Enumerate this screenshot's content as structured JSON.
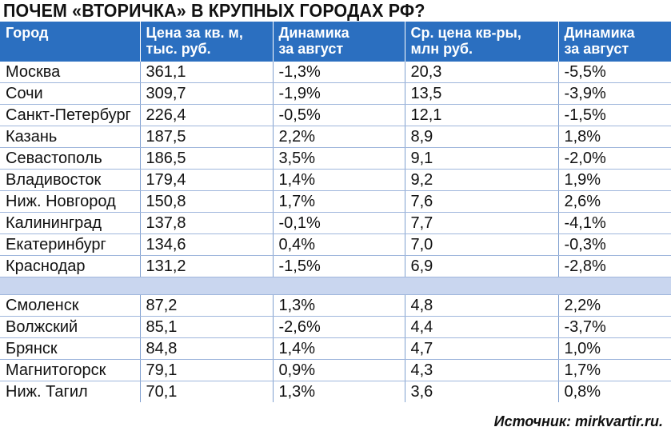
{
  "title": "ПОЧЕМ «ВТОРИЧКА» В КРУПНЫХ ГОРОДАХ РФ?",
  "source": "Источник: mirkvartir.ru.",
  "colors": {
    "header_bg": "#2b6fc0",
    "separator_bg": "#c9d6ef"
  },
  "chart_data": {
    "type": "table",
    "title": "ПОЧЕМ «ВТОРИЧКА» В КРУПНЫХ ГОРОДАХ РФ?",
    "columns": [
      {
        "line1": "Город",
        "line2": ""
      },
      {
        "line1": "Цена за кв. м,",
        "line2": "тыс. руб."
      },
      {
        "line1": "Динамика",
        "line2": "за август"
      },
      {
        "line1": "Ср. цена кв-ры,",
        "line2": "млн руб."
      },
      {
        "line1": "Динамика",
        "line2": "за август"
      }
    ],
    "groups": [
      [
        [
          "Москва",
          "361,1",
          "-1,3%",
          "20,3",
          "-5,5%"
        ],
        [
          "Сочи",
          "309,7",
          "-1,9%",
          "13,5",
          "-3,9%"
        ],
        [
          "Санкт-Петербург",
          "226,4",
          "-0,5%",
          "12,1",
          "-1,5%"
        ],
        [
          "Казань",
          "187,5",
          "2,2%",
          "8,9",
          "1,8%"
        ],
        [
          "Севастополь",
          "186,5",
          "3,5%",
          "9,1",
          "-2,0%"
        ],
        [
          "Владивосток",
          "179,4",
          "1,4%",
          "9,2",
          "1,9%"
        ],
        [
          "Ниж. Новгород",
          "150,8",
          "1,7%",
          "7,6",
          "2,6%"
        ],
        [
          "Калининград",
          "137,8",
          "-0,1%",
          "7,7",
          "-4,1%"
        ],
        [
          "Екатеринбург",
          "134,6",
          "0,4%",
          "7,0",
          "-0,3%"
        ],
        [
          "Краснодар",
          "131,2",
          "-1,5%",
          "6,9",
          "-2,8%"
        ]
      ],
      [
        [
          "Смоленск",
          "87,2",
          "1,3%",
          "4,8",
          "2,2%"
        ],
        [
          "Волжский",
          "85,1",
          "-2,6%",
          "4,4",
          "-3,7%"
        ],
        [
          "Брянск",
          "84,8",
          "1,4%",
          "4,7",
          "1,0%"
        ],
        [
          "Магнитогорск",
          "79,1",
          "0,9%",
          "4,3",
          "1,7%"
        ],
        [
          "Ниж. Тагил",
          "70,1",
          "1,3%",
          "3,6",
          "0,8%"
        ]
      ]
    ]
  }
}
